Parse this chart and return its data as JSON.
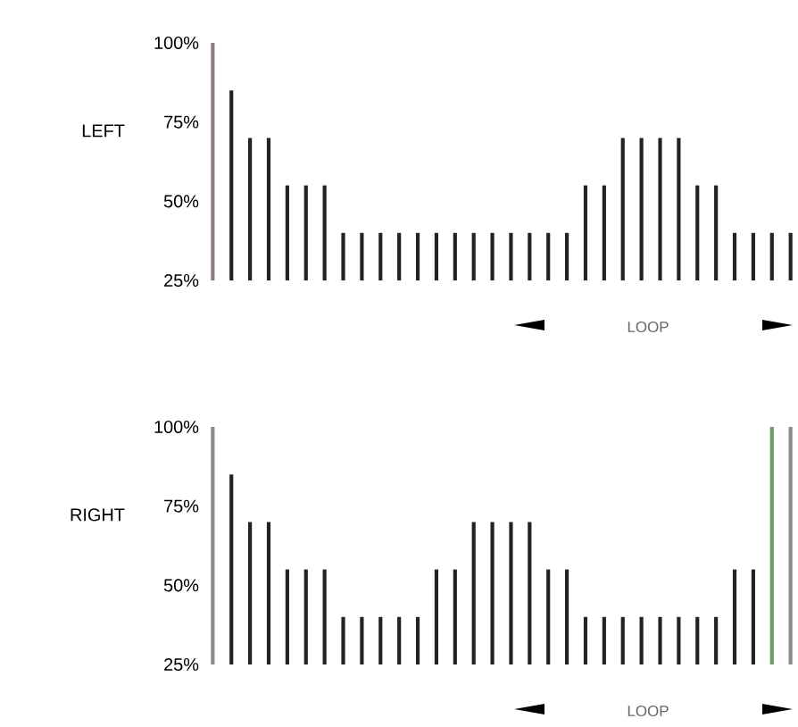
{
  "chart_data": [
    {
      "type": "bar",
      "ylabel": "LEFT",
      "categories": [
        null,
        null,
        null,
        null,
        null,
        null,
        null,
        null,
        null,
        null,
        null,
        null,
        null,
        null,
        null,
        null,
        null,
        null,
        null,
        null,
        null,
        null,
        null,
        null,
        null,
        null,
        null,
        null,
        null,
        null,
        null,
        null
      ],
      "values": [
        100,
        85,
        70,
        70,
        55,
        55,
        55,
        40,
        40,
        40,
        40,
        40,
        40,
        40,
        40,
        40,
        40,
        40,
        40,
        40,
        55,
        55,
        70,
        70,
        70,
        70,
        55,
        55,
        40,
        40,
        40,
        40
      ],
      "colors": [
        "#8a7f7a",
        "#222222",
        "#222222",
        "#222222",
        "#222222",
        "#222222",
        "#222222",
        "#222222",
        "#222222",
        "#222222",
        "#222222",
        "#222222",
        "#222222",
        "#222222",
        "#222222",
        "#222222",
        "#222222",
        "#222222",
        "#222222",
        "#222222",
        "#222222",
        "#222222",
        "#222222",
        "#222222",
        "#222222",
        "#222222",
        "#222222",
        "#222222",
        "#222222",
        "#222222",
        "#222222",
        "#222222"
      ],
      "ylim": [
        25,
        100
      ],
      "yticks": [
        {
          "value": 25,
          "label": "25%"
        },
        {
          "value": 50,
          "label": "50%"
        },
        {
          "value": 75,
          "label": "75%"
        },
        {
          "value": 100,
          "label": "100%"
        }
      ],
      "tick_labels": "y",
      "annotations": [
        "LOOP"
      ]
    },
    {
      "type": "bar",
      "ylabel": "RIGHT",
      "categories": [
        null,
        null,
        null,
        null,
        null,
        null,
        null,
        null,
        null,
        null,
        null,
        null,
        null,
        null,
        null,
        null,
        null,
        null,
        null,
        null,
        null,
        null,
        null,
        null,
        null,
        null,
        null,
        null,
        null,
        null,
        null,
        null
      ],
      "values": [
        100,
        85,
        70,
        70,
        55,
        55,
        55,
        40,
        40,
        40,
        40,
        40,
        55,
        55,
        70,
        70,
        70,
        70,
        55,
        55,
        40,
        40,
        40,
        40,
        40,
        40,
        40,
        40,
        55,
        55,
        100,
        100
      ],
      "colors": [
        "#8a8a8a",
        "#222222",
        "#222222",
        "#222222",
        "#222222",
        "#222222",
        "#222222",
        "#222222",
        "#222222",
        "#222222",
        "#222222",
        "#222222",
        "#222222",
        "#222222",
        "#222222",
        "#222222",
        "#222222",
        "#222222",
        "#222222",
        "#222222",
        "#222222",
        "#222222",
        "#222222",
        "#222222",
        "#222222",
        "#222222",
        "#222222",
        "#222222",
        "#222222",
        "#222222",
        "#6f9a6a",
        "#8a8a8a"
      ],
      "ylim": [
        25,
        100
      ],
      "yticks": [
        {
          "value": 25,
          "label": "25%"
        },
        {
          "value": 50,
          "label": "50%"
        },
        {
          "value": 75,
          "label": "75%"
        },
        {
          "value": 100,
          "label": "100%"
        }
      ],
      "tick_labels": "y",
      "annotations": [
        "LOOP"
      ]
    }
  ]
}
